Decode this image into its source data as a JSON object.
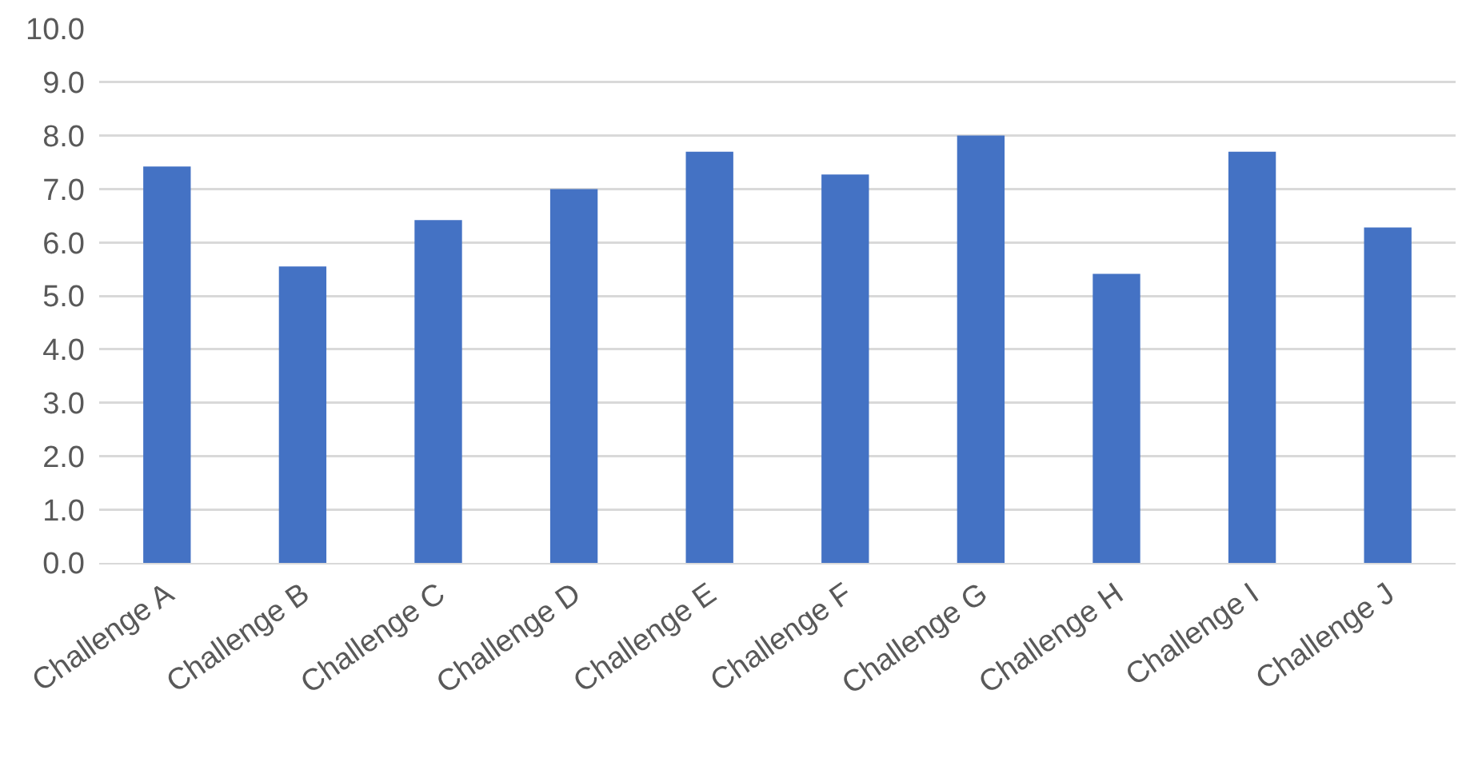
{
  "chart_data": {
    "type": "bar",
    "categories": [
      "Challenge A",
      "Challenge B",
      "Challenge C",
      "Challenge D",
      "Challenge E",
      "Challenge F",
      "Challenge G",
      "Challenge H",
      "Challenge I",
      "Challenge J"
    ],
    "values": [
      7.42,
      5.55,
      6.42,
      7.0,
      7.7,
      7.27,
      8.0,
      5.41,
      7.7,
      6.28
    ],
    "color": "#4472c4",
    "ylim": [
      0,
      10
    ],
    "yticks": [
      {
        "value": 0,
        "label": "0.0"
      },
      {
        "value": 1,
        "label": "1.0"
      },
      {
        "value": 2,
        "label": "2.0"
      },
      {
        "value": 3,
        "label": "3.0"
      },
      {
        "value": 4,
        "label": "4.0"
      },
      {
        "value": 5,
        "label": "5.0"
      },
      {
        "value": 6,
        "label": "6.0"
      },
      {
        "value": 7,
        "label": "7.0"
      },
      {
        "value": 8,
        "label": "8.0"
      },
      {
        "value": 9,
        "label": "9.0"
      },
      {
        "value": 10,
        "label": "10.0"
      }
    ],
    "grid": "y",
    "legend": false
  }
}
